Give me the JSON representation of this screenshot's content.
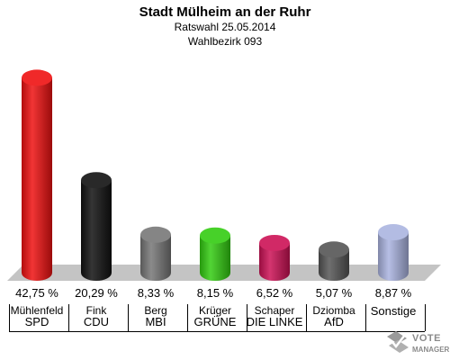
{
  "header": {
    "title": "Stadt Mülheim an der Ruhr",
    "subtitle1": "Ratswahl 25.05.2014",
    "subtitle2": "Wahlbezirk 093"
  },
  "chart_data": {
    "type": "bar",
    "title": "Stadt Mülheim an der Ruhr",
    "categories": [
      "SPD",
      "CDU",
      "MBI",
      "GRÜNE",
      "DIE LINKE",
      "AfD",
      "Sonstige"
    ],
    "candidates": [
      "Mühlenfeld",
      "Fink",
      "Berg",
      "Krüger",
      "Schaper",
      "Dziomba",
      ""
    ],
    "values": [
      42.75,
      20.29,
      8.33,
      8.15,
      6.52,
      5.07,
      8.87
    ],
    "value_labels": [
      "42,75 %",
      "20,29 %",
      "8,33 %",
      "8,15 %",
      "6,52 %",
      "5,07 %",
      "8,87 %"
    ],
    "colors": [
      "#ee1111",
      "#111111",
      "#777777",
      "#33cc11",
      "#cc1155",
      "#555555",
      "#aab4e0"
    ],
    "ylim": [
      0,
      45
    ],
    "grid": false,
    "legend": "none"
  },
  "logo": {
    "line1": "VOTE",
    "line2": "MANAGER"
  }
}
